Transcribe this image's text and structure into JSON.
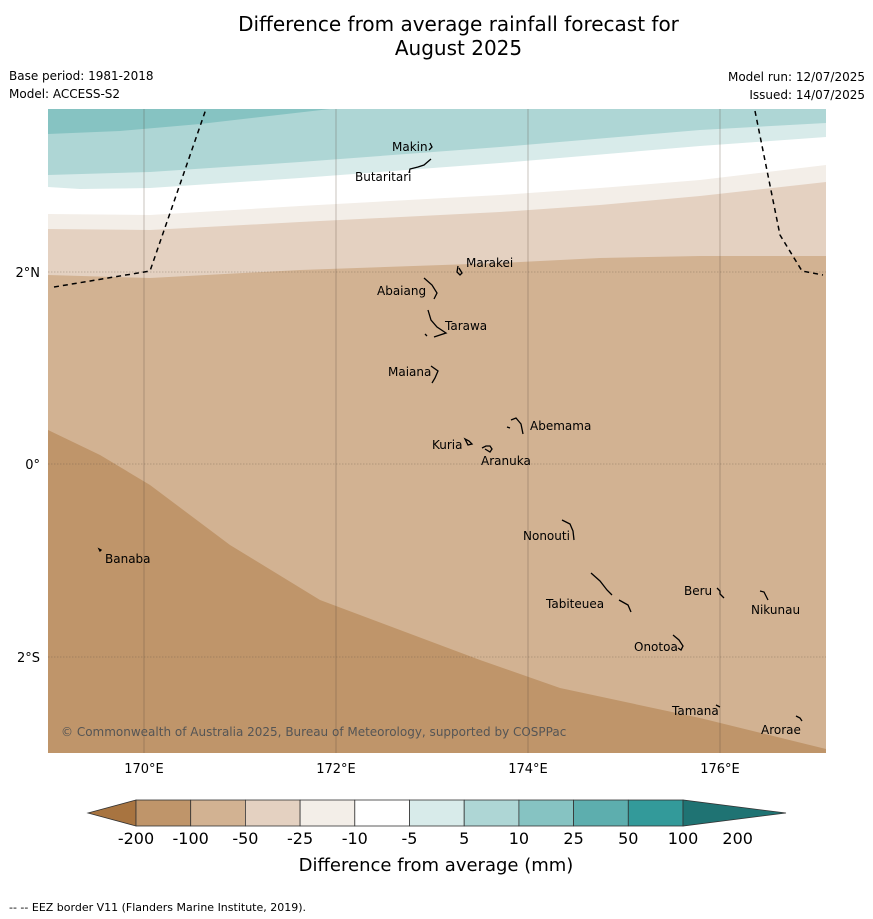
{
  "title_line1": "Difference from average rainfall forecast for",
  "title_line2": "August 2025",
  "base_period": "Base period: 1981-2018",
  "model": "Model: ACCESS-S2",
  "model_run": "Model run: 12/07/2025",
  "issued": "Issued: 14/07/2025",
  "credit": "© Commonwealth of Australia 2025, Bureau of Meteorology, supported by COSPPac",
  "footnote": "-- -- EEZ border V11 (Flanders Marine Institute, 2019).",
  "lon_ticks": [
    "170°E",
    "172°E",
    "174°E",
    "176°E"
  ],
  "lat_ticks": [
    "2°N",
    "0°",
    "2°S"
  ],
  "islands": [
    "Makin",
    "Butaritari",
    "Marakei",
    "Abaiang",
    "Tarawa",
    "Maiana",
    "Abemama",
    "Kuria",
    "Aranuka",
    "Nonouti",
    "Banaba",
    "Beru",
    "Nikunau",
    "Tabiteuea",
    "Onotoa",
    "Tamana",
    "Arorae"
  ],
  "colorbar": {
    "title": "Difference from average (mm)",
    "ticks": [
      "-200",
      "-100",
      "-50",
      "-25",
      "-10",
      "-5",
      "5",
      "10",
      "25",
      "50",
      "100",
      "200"
    ],
    "colors": [
      "#a87440",
      "#bf956a",
      "#d2b292",
      "#e4d1c1",
      "#f3eee8",
      "#ffffff",
      "#d8ebea",
      "#aed6d5",
      "#86c3c2",
      "#5daeae",
      "#339a9a",
      "#1f7373"
    ]
  }
}
